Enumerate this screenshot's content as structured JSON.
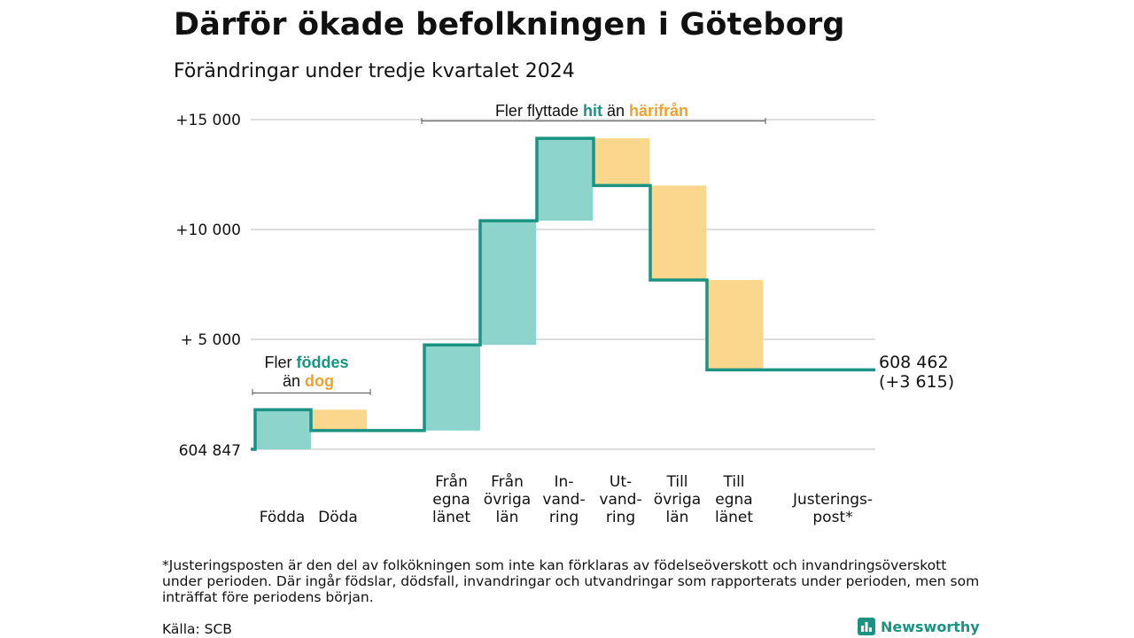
{
  "header": {
    "title": "Därför ökade befolkningen i Göteborg",
    "subtitle": "Förändringar under tredje kvartalet 2024"
  },
  "chart_data": {
    "type": "waterfall",
    "baseline_label": "604 847",
    "end_label": [
      "608 462",
      "(+3 615)"
    ],
    "yticks": [
      {
        "value": 15000,
        "label": "+15 000"
      },
      {
        "value": 10000,
        "label": "+10 000"
      },
      {
        "value": 5000,
        "label": "+ 5 000"
      }
    ],
    "ylim": [
      0,
      15000
    ],
    "grid": true,
    "colors": {
      "increase_fill": "#8dd5cc",
      "decrease_fill": "#fbd78e",
      "step_line": "#1a9383",
      "increase_text": "#1a9383",
      "decrease_text": "#f2a12d",
      "grid": "#dddddd"
    },
    "steps": [
      {
        "key": "fodda",
        "label": [
          "Födda"
        ],
        "change": 1800,
        "direction": "increase"
      },
      {
        "key": "doda",
        "label": [
          "Döda"
        ],
        "change": -950,
        "direction": "decrease"
      },
      {
        "key": "gap",
        "label": [],
        "change": 0,
        "direction": "none"
      },
      {
        "key": "fran-egna",
        "label": [
          "Från",
          "egna",
          "länet"
        ],
        "change": 3900,
        "direction": "increase"
      },
      {
        "key": "fran-ovriga",
        "label": [
          "Från",
          "övriga",
          "län"
        ],
        "change": 5650,
        "direction": "increase"
      },
      {
        "key": "invandring",
        "label": [
          "In-",
          "vand-",
          "ring"
        ],
        "change": 3750,
        "direction": "increase"
      },
      {
        "key": "utvandring",
        "label": [
          "Ut-",
          "vand-",
          "ring"
        ],
        "change": -2150,
        "direction": "decrease"
      },
      {
        "key": "till-ovriga",
        "label": [
          "Till",
          "övriga",
          "län"
        ],
        "change": -4300,
        "direction": "decrease"
      },
      {
        "key": "till-egna",
        "label": [
          "Till",
          "egna",
          "länet"
        ],
        "change": -4085,
        "direction": "decrease"
      },
      {
        "key": "justeringspost",
        "label": [
          "Justerings-",
          "post*"
        ],
        "change": 0,
        "direction": "none"
      }
    ],
    "annotations": {
      "births": {
        "line1": "Fler",
        "word1": "föddes",
        "line2": "än",
        "word2": "dog"
      },
      "migration": {
        "text": "Fler flyttade",
        "word1": "hit",
        "mid": "än",
        "word2": "härifrån"
      }
    }
  },
  "footnote": "*Justeringsposten är den del av folkökningen som inte kan förklaras av födelseöverskott och invandringsöverskott under perioden. Där ingår födslar, dödsfall, invandringar och utvandringar som rapporterats under perioden, men som inträffat före periodens början.",
  "source": "Källa: SCB",
  "brand": {
    "name": "Newsworthy",
    "icon": "bar-chart-icon"
  }
}
